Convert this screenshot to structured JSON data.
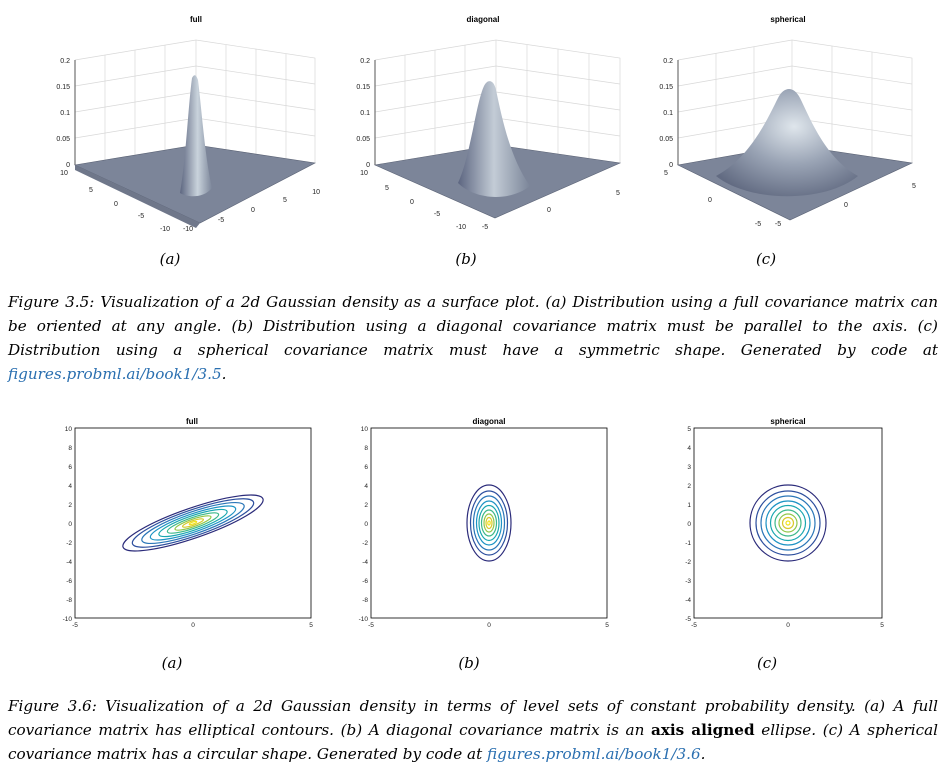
{
  "figure_3_5": {
    "panels": [
      {
        "title": "full",
        "label": "(a)",
        "z_ticks": [
          "0.2",
          "0.15",
          "0.1",
          "0.05",
          "0"
        ],
        "left_ticks": [
          "10",
          "5",
          "0",
          "-5",
          "-10"
        ],
        "right_ticks": [
          "-10",
          "-5",
          "0",
          "5",
          "10"
        ]
      },
      {
        "title": "diagonal",
        "label": "(b)",
        "z_ticks": [
          "0.2",
          "0.15",
          "0.1",
          "0.05",
          "0"
        ],
        "left_ticks": [
          "10",
          "5",
          "0",
          "-5",
          "-10"
        ],
        "right_ticks": [
          "-5",
          "0",
          "5"
        ]
      },
      {
        "title": "spherical",
        "label": "(c)",
        "z_ticks": [
          "0.2",
          "0.15",
          "0.1",
          "0.05",
          "0"
        ],
        "left_ticks": [
          "5",
          "0",
          "-5"
        ],
        "right_ticks": [
          "-5",
          "0",
          "5"
        ]
      }
    ],
    "caption_text": "Figure 3.5: Visualization of a 2d Gaussian density as a surface plot. (a) Distribution using a full covariance matrix can be oriented at any angle. (b) Distribution using a diagonal covariance matrix must be parallel to the axis. (c) Distribution using a spherical covariance matrix must have a symmetric shape. Generated by code at",
    "caption_link": "figures.probml.ai/book1/3.5",
    "caption_end": "."
  },
  "figure_3_6": {
    "panels": [
      {
        "title": "full",
        "label": "(a)",
        "y_ticks": [
          "10",
          "8",
          "6",
          "4",
          "2",
          "0",
          "-2",
          "-4",
          "-6",
          "-8",
          "-10"
        ],
        "x_ticks": [
          "-5",
          "0",
          "5"
        ]
      },
      {
        "title": "diagonal",
        "label": "(b)",
        "y_ticks": [
          "10",
          "8",
          "6",
          "4",
          "2",
          "0",
          "-2",
          "-4",
          "-6",
          "-8",
          "-10"
        ],
        "x_ticks": [
          "-5",
          "0",
          "5"
        ]
      },
      {
        "title": "spherical",
        "label": "(c)",
        "y_ticks": [
          "5",
          "4",
          "3",
          "2",
          "1",
          "0",
          "-1",
          "-2",
          "-3",
          "-4",
          "-5"
        ],
        "x_ticks": [
          "-5",
          "0",
          "5"
        ]
      }
    ],
    "caption_text": "Figure 3.6: Visualization of a 2d Gaussian density in terms of level sets of constant probability density. (a) A full covariance matrix has elliptical contours. (b) A diagonal covariance matrix is an",
    "caption_bold": "axis aligned",
    "caption_text2": "ellipse. (c) A spherical covariance matrix has a circular shape. Generated by code at",
    "caption_link": "figures.probml.ai/book1/3.6",
    "caption_end": "."
  }
}
